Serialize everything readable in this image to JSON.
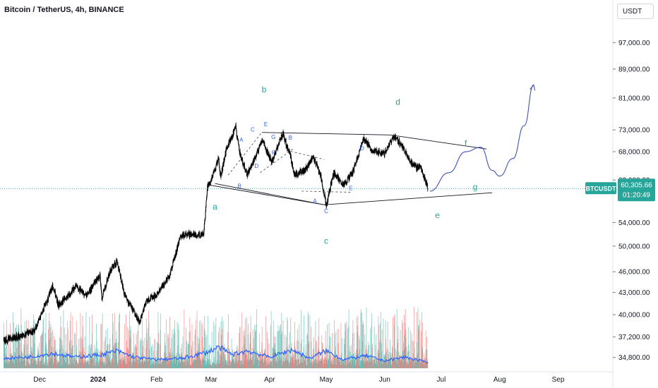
{
  "header": {
    "title": "Bitcoin / TetherUS, 4h, BINANCE",
    "currency": "USDT"
  },
  "price_tag": {
    "symbol": "BTCUSDT",
    "price": "60,305.66",
    "countdown": "01:20:49",
    "color": "#26a69a"
  },
  "colors": {
    "candle": "#000000",
    "volume_up": "#26a69a",
    "volume_down": "#ef5350",
    "volume_ma": "#2962ff",
    "wave_label": "#26a69a",
    "sub_label": "#2962ff",
    "projection": "#3f51b5",
    "trendline": "#131722"
  },
  "chart_data": {
    "type": "candlestick",
    "title": "Bitcoin / TetherUS, 4h, BINANCE",
    "y_scale": "log",
    "ylim": [
      33600,
      104000
    ],
    "ytick_labels": [
      "97,000.00",
      "89,000.00",
      "81,000.00",
      "73,000.00",
      "68,000.00",
      "62,000.00",
      "54,000.00",
      "50,000.00",
      "46,000.00",
      "43,000.00",
      "40,000.00",
      "37,200.00",
      "34,800.00"
    ],
    "ytick_values": [
      97000,
      89000,
      81000,
      73000,
      68000,
      62000,
      54000,
      50000,
      46000,
      43000,
      40000,
      37200,
      34800
    ],
    "xtick_labels": [
      "Dec",
      "2024",
      "Feb",
      "Mar",
      "Apr",
      "May",
      "Jun",
      "Jul",
      "Aug",
      "Sep"
    ],
    "xtick_dates": [
      "2023-12-01",
      "2024-01-01",
      "2024-02-01",
      "2024-03-01",
      "2024-04-01",
      "2024-05-01",
      "2024-06-01",
      "2024-07-01",
      "2024-08-01",
      "2024-09-01"
    ],
    "x_range": [
      "2023-11-10",
      "2024-09-30"
    ],
    "last_price": 60305.66,
    "price_path": [
      [
        "2023-11-12",
        36800
      ],
      [
        "2023-11-20",
        37300
      ],
      [
        "2023-11-28",
        37900
      ],
      [
        "2023-12-05",
        41800
      ],
      [
        "2023-12-08",
        44000
      ],
      [
        "2023-12-11",
        41200
      ],
      [
        "2023-12-16",
        42500
      ],
      [
        "2023-12-20",
        43800
      ],
      [
        "2023-12-26",
        42500
      ],
      [
        "2024-01-02",
        45500
      ],
      [
        "2024-01-03",
        42300
      ],
      [
        "2024-01-08",
        46500
      ],
      [
        "2024-01-11",
        47500
      ],
      [
        "2024-01-15",
        42800
      ],
      [
        "2024-01-18",
        41200
      ],
      [
        "2024-01-23",
        39000
      ],
      [
        "2024-01-27",
        42000
      ],
      [
        "2024-02-01",
        42500
      ],
      [
        "2024-02-08",
        45500
      ],
      [
        "2024-02-14",
        51800
      ],
      [
        "2024-02-20",
        52000
      ],
      [
        "2024-02-26",
        51800
      ],
      [
        "2024-02-28",
        60500
      ],
      [
        "2024-03-01",
        62000
      ],
      [
        "2024-03-05",
        66500
      ],
      [
        "2024-03-06",
        62500
      ],
      [
        "2024-03-09",
        68500
      ],
      [
        "2024-03-14",
        73500
      ],
      [
        "2024-03-16",
        68000
      ],
      [
        "2024-03-20",
        63000
      ],
      [
        "2024-03-25",
        67200
      ],
      [
        "2024-03-28",
        70700
      ],
      [
        "2024-04-02",
        65800
      ],
      [
        "2024-04-08",
        72100
      ],
      [
        "2024-04-12",
        67000
      ],
      [
        "2024-04-14",
        63000
      ],
      [
        "2024-04-20",
        64200
      ],
      [
        "2024-04-24",
        66800
      ],
      [
        "2024-04-28",
        63000
      ],
      [
        "2024-05-01",
        57000
      ],
      [
        "2024-05-05",
        63500
      ],
      [
        "2024-05-10",
        61000
      ],
      [
        "2024-05-15",
        63500
      ],
      [
        "2024-05-21",
        71000
      ],
      [
        "2024-05-25",
        68500
      ],
      [
        "2024-06-01",
        67500
      ],
      [
        "2024-06-06",
        71500
      ],
      [
        "2024-06-10",
        69500
      ],
      [
        "2024-06-14",
        66000
      ],
      [
        "2024-06-18",
        64500
      ],
      [
        "2024-06-20",
        64800
      ],
      [
        "2024-06-24",
        60305
      ]
    ],
    "volume_ma": [
      [
        "2023-11-12",
        0.4
      ],
      [
        "2023-11-25",
        0.45
      ],
      [
        "2023-12-08",
        0.6
      ],
      [
        "2023-12-20",
        0.45
      ],
      [
        "2024-01-03",
        0.55
      ],
      [
        "2024-01-11",
        0.7
      ],
      [
        "2024-01-20",
        0.45
      ],
      [
        "2024-02-01",
        0.35
      ],
      [
        "2024-02-15",
        0.4
      ],
      [
        "2024-02-28",
        0.65
      ],
      [
        "2024-03-05",
        0.85
      ],
      [
        "2024-03-12",
        0.55
      ],
      [
        "2024-03-20",
        0.7
      ],
      [
        "2024-04-01",
        0.45
      ],
      [
        "2024-04-13",
        0.75
      ],
      [
        "2024-04-22",
        0.4
      ],
      [
        "2024-05-01",
        0.7
      ],
      [
        "2024-05-10",
        0.35
      ],
      [
        "2024-05-22",
        0.5
      ],
      [
        "2024-06-01",
        0.3
      ],
      [
        "2024-06-12",
        0.45
      ],
      [
        "2024-06-20",
        0.3
      ],
      [
        "2024-06-24",
        0.25
      ]
    ],
    "projection_path": [
      [
        "2024-06-25",
        59800
      ],
      [
        "2024-07-05",
        63500
      ],
      [
        "2024-07-14",
        68000
      ],
      [
        "2024-07-22",
        69000
      ],
      [
        "2024-07-28",
        64000
      ],
      [
        "2024-08-01",
        62800
      ],
      [
        "2024-08-08",
        66500
      ],
      [
        "2024-08-14",
        74000
      ],
      [
        "2024-08-19",
        84500
      ]
    ],
    "trendlines": [
      [
        [
          "2024-03-28",
          72400
        ],
        [
          "2024-06-04",
          71800
        ],
        [
          "2024-07-25",
          68600
        ]
      ],
      [
        [
          "2024-02-29",
          61000
        ],
        [
          "2024-04-30",
          57200
        ],
        [
          "2024-07-28",
          59500
        ]
      ],
      [
        [
          "2024-03-03",
          61300
        ],
        [
          "2024-04-30",
          57200
        ]
      ]
    ],
    "wave_labels": [
      {
        "text": "a",
        "date": "2024-03-03",
        "price": 56300
      },
      {
        "text": "b",
        "date": "2024-03-29",
        "price": 82500
      },
      {
        "text": "c",
        "date": "2024-05-01",
        "price": 50400
      },
      {
        "text": "d",
        "date": "2024-06-08",
        "price": 79200
      },
      {
        "text": "e",
        "date": "2024-06-29",
        "price": 54800
      },
      {
        "text": "f",
        "date": "2024-07-14",
        "price": 69300
      },
      {
        "text": "g",
        "date": "2024-07-19",
        "price": 60100
      }
    ],
    "sub_labels": [
      {
        "text": "A",
        "date": "2024-03-17",
        "price": 70200
      },
      {
        "text": "C",
        "date": "2024-03-23",
        "price": 72600
      },
      {
        "text": "E",
        "date": "2024-03-30",
        "price": 73900
      },
      {
        "text": "G",
        "date": "2024-04-03",
        "price": 70900
      },
      {
        "text": "B",
        "date": "2024-04-12",
        "price": 70700
      },
      {
        "text": "F",
        "date": "2024-04-03",
        "price": 67300
      },
      {
        "text": "D",
        "date": "2024-03-25",
        "price": 64500
      },
      {
        "text": "D",
        "date": "2024-05-20",
        "price": 68300
      },
      {
        "text": "B",
        "date": "2024-03-16",
        "price": 60400
      },
      {
        "text": "A",
        "date": "2024-04-25",
        "price": 57600
      },
      {
        "text": "E",
        "date": "2024-05-14",
        "price": 60000
      },
      {
        "text": "C",
        "date": "2024-05-01",
        "price": 55700
      }
    ]
  }
}
